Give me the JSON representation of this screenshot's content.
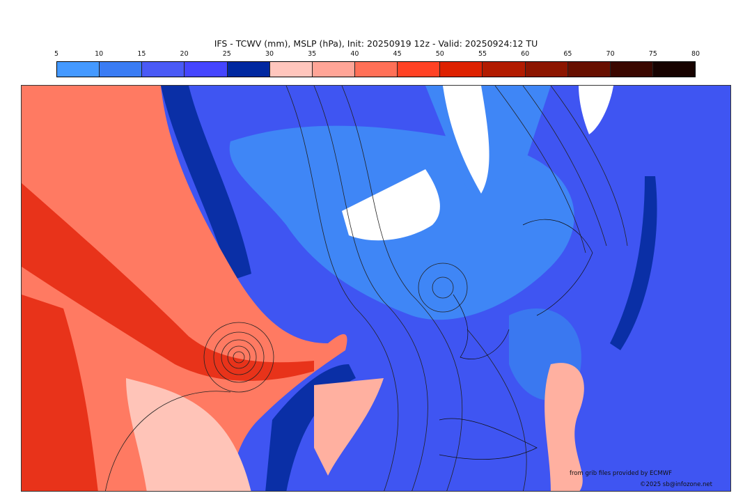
{
  "title": "IFS - TCWV (mm), MSLP (hPa), Init: 20250919 12z - Valid: 20250924:12 TU",
  "colorbar": {
    "ticks": [
      "5",
      "10",
      "15",
      "20",
      "25",
      "30",
      "35",
      "40",
      "45",
      "50",
      "55",
      "60",
      "65",
      "70",
      "75",
      "80"
    ],
    "colors": [
      "#4499ff",
      "#3a7cf4",
      "#4a5af6",
      "#4545fe",
      "#0028a0",
      "#ffc6bd",
      "#ffa597",
      "#ff7057",
      "#ff4224",
      "#de2100",
      "#b21b00",
      "#8c1500",
      "#670f00",
      "#3a0700",
      "#170200"
    ]
  },
  "credits": {
    "source": "from grib files provided by ECMWF",
    "copyright": "©2025 sb@infozone.net"
  }
}
